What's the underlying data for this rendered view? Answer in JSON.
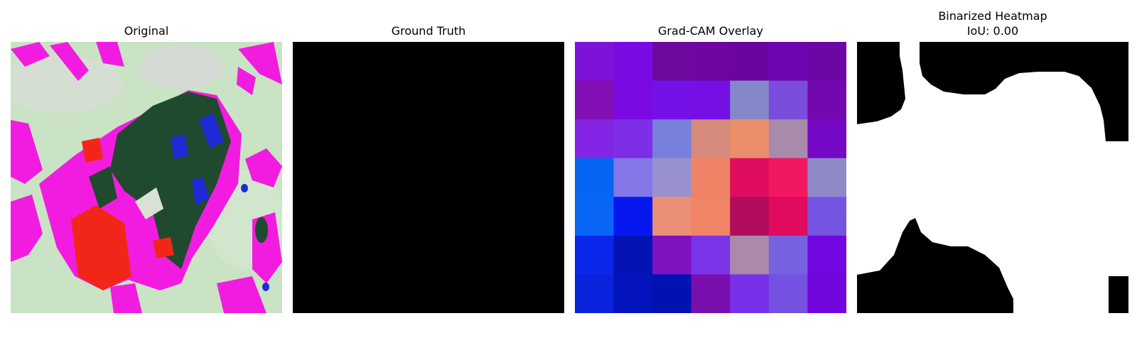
{
  "panels": [
    {
      "title": "Original"
    },
    {
      "title": "Ground Truth"
    },
    {
      "title": "Grad-CAM Overlay"
    },
    {
      "title": "Binarized Heatmap",
      "subtitle": "IoU: 0.00"
    }
  ],
  "colors": {
    "background": "#ffffff",
    "ground_truth_fill": "#000000",
    "original_base": "#c9e3c4",
    "original_magenta": "#f21ce0",
    "original_darkgreen": "#1f4a2e",
    "original_blue": "#1f2bd6",
    "original_red": "#f22618"
  },
  "heatmap_grid": [
    [
      "#7f12d9",
      "#7a0ae2",
      "#6e089f",
      "#70069f",
      "#6c059f",
      "#6f05b1",
      "#6e06a6"
    ],
    [
      "#820fb4",
      "#7a09e2",
      "#7411e8",
      "#7410e4",
      "#8488c8",
      "#7a4ddc",
      "#7208ad"
    ],
    [
      "#8424e4",
      "#7e2ee6",
      "#7980dc",
      "#d58a7c",
      "#e98f6a",
      "#a88aaa",
      "#7408c5"
    ],
    [
      "#0565f5",
      "#8577e8",
      "#9990cf",
      "#f08266",
      "#e00c5f",
      "#f11761",
      "#8f8ac7"
    ],
    [
      "#0966f6",
      "#0718ef",
      "#e98f77",
      "#f18466",
      "#b10c5e",
      "#e00a5e",
      "#7554e1"
    ],
    [
      "#0c27ec",
      "#0313b3",
      "#8011c0",
      "#7b34e8",
      "#aa8aa8",
      "#7462e0",
      "#7207e2"
    ],
    [
      "#0923dd",
      "#0414bc",
      "#0012b0",
      "#7a0fae",
      "#7830e8",
      "#7451e0",
      "#7306dc"
    ]
  ]
}
